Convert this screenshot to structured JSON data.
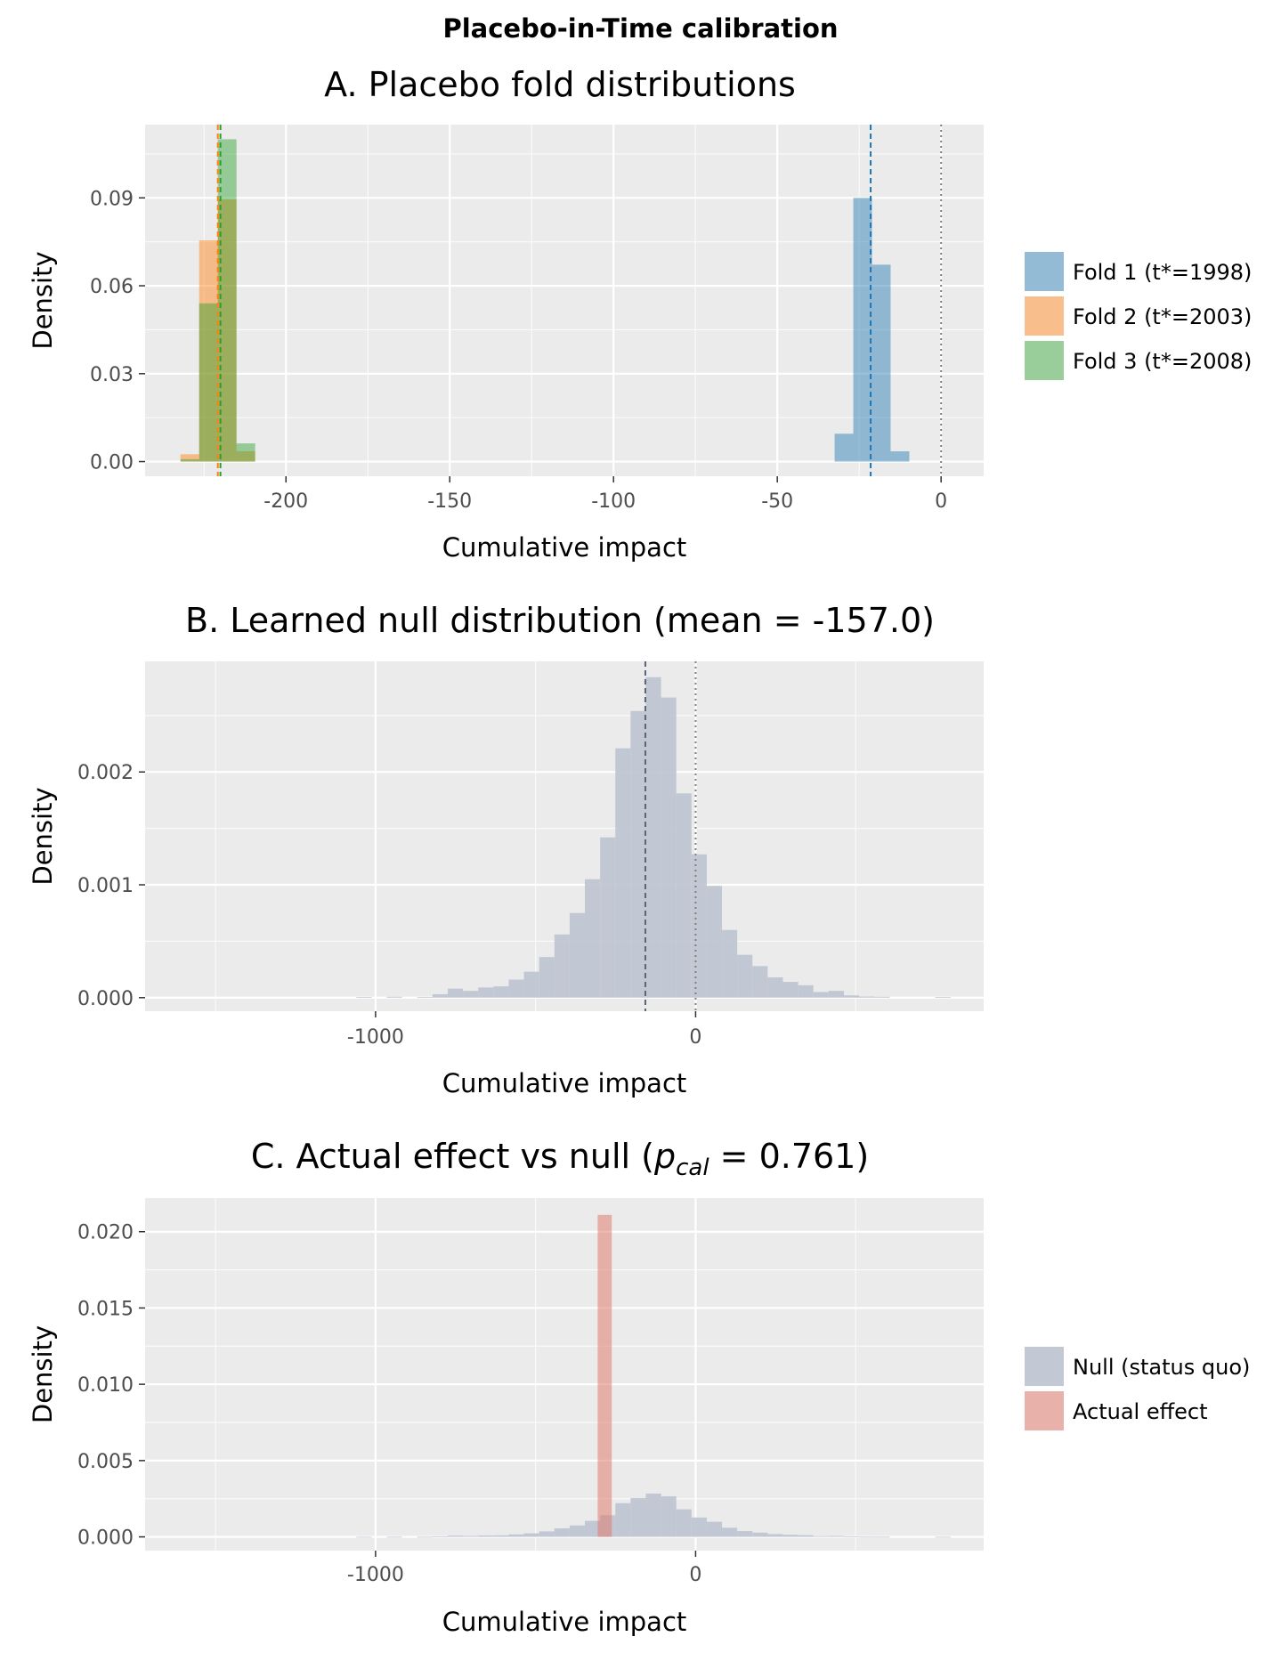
{
  "figure_title": "Placebo-in-Time calibration",
  "chart_data": [
    {
      "type": "histogram",
      "title": "A. Placebo fold distributions",
      "xlabel": "Cumulative impact",
      "ylabel": "Density",
      "xlim": [
        -243,
        13
      ],
      "ylim": [
        -0.005,
        0.115
      ],
      "xticks": [
        -200,
        -150,
        -100,
        -50,
        0
      ],
      "xtick_labels": [
        "-200",
        "-150",
        "-100",
        "-50",
        "0"
      ],
      "yticks": [
        0.0,
        0.03,
        0.06,
        0.09
      ],
      "ytick_labels": [
        "0.00",
        "0.03",
        "0.06",
        "0.09"
      ],
      "grid": true,
      "legend_position": "right",
      "reference_line": {
        "x": 0,
        "style": "dotted",
        "color": "#7f7f7f"
      },
      "series": [
        {
          "name": "Fold 1 (t*=1998)",
          "color": "#1f77b4",
          "mean_line": -21.5,
          "bins": [
            [
              -32.5,
              -26.8,
              0.0095
            ],
            [
              -26.8,
              -21.1,
              0.09
            ],
            [
              -21.1,
              -15.4,
              0.0672
            ],
            [
              -15.4,
              -9.7,
              0.0035
            ]
          ]
        },
        {
          "name": "Fold 2 (t*=2003)",
          "color": "#ff7f0e",
          "mean_line": -220.8,
          "bins": [
            [
              -232.2,
              -226.5,
              0.0025
            ],
            [
              -226.5,
              -220.8,
              0.0755
            ],
            [
              -220.8,
              -215.1,
              0.0895
            ],
            [
              -215.1,
              -209.4,
              0.0035
            ]
          ]
        },
        {
          "name": "Fold 3 (t*=2008)",
          "color": "#2ca02c",
          "mean_line": -220.0,
          "bins": [
            [
              -232.2,
              -226.5,
              0.0008
            ],
            [
              -226.5,
              -220.8,
              0.054
            ],
            [
              -220.8,
              -215.1,
              0.11
            ],
            [
              -215.1,
              -209.4,
              0.0062
            ]
          ]
        }
      ]
    },
    {
      "type": "histogram",
      "title": "B. Learned null distribution (mean = -157.0)",
      "xlabel": "Cumulative impact",
      "ylabel": "Density",
      "xlim": [
        -1720,
        900
      ],
      "ylim": [
        -0.00012,
        0.00298
      ],
      "xticks": [
        -1000,
        0
      ],
      "xtick_labels": [
        "-1000",
        "0"
      ],
      "yticks": [
        0.0,
        0.001,
        0.002
      ],
      "ytick_labels": [
        "0.000",
        "0.001",
        "0.002"
      ],
      "grid": true,
      "reference_line": {
        "x": 0,
        "style": "dotted",
        "color": "#7f7f7f"
      },
      "mean_line": -157.0,
      "series": [
        {
          "name": "Null",
          "color": "#c0c6d2",
          "bin_start": -1060,
          "bin_width": 47.6,
          "values": [
            5e-06,
            0,
            8e-06,
            0,
            6e-06,
            3e-05,
            8e-05,
            6e-05,
            9e-05,
            0.0001,
            0.00016,
            0.00023,
            0.00036,
            0.00056,
            0.00075,
            0.00105,
            0.00142,
            0.00221,
            0.00254,
            0.00284,
            0.00266,
            0.00181,
            0.00127,
            0.00099,
            0.0006,
            0.00038,
            0.00028,
            0.00018,
            0.00014,
            0.00011,
            5e-05,
            6e-05,
            2e-05,
            1e-05,
            8e-06,
            0,
            0,
            0,
            5e-06
          ]
        }
      ]
    },
    {
      "type": "histogram",
      "title_prefix": "C. Actual effect vs null (",
      "title_p": "p",
      "title_sub": "cal",
      "title_suffix": " = 0.761)",
      "xlabel": "Cumulative impact",
      "ylabel": "Density",
      "xlim": [
        -1720,
        900
      ],
      "ylim": [
        -0.0009,
        0.0222
      ],
      "xticks": [
        -1000,
        0
      ],
      "xtick_labels": [
        "-1000",
        "0"
      ],
      "yticks": [
        0.0,
        0.005,
        0.01,
        0.015,
        0.02
      ],
      "ytick_labels": [
        "0.000",
        "0.005",
        "0.010",
        "0.015",
        "0.020"
      ],
      "grid": true,
      "legend_position": "right",
      "series": [
        {
          "name": "Null (status quo)",
          "color": "#c0c6d2",
          "bin_start": -1060,
          "bin_width": 47.6,
          "values": [
            5e-06,
            0,
            8e-06,
            0,
            6e-06,
            3e-05,
            8e-05,
            6e-05,
            9e-05,
            0.0001,
            0.00016,
            0.00023,
            0.00036,
            0.00056,
            0.00075,
            0.00105,
            0.00142,
            0.00221,
            0.00254,
            0.00284,
            0.00266,
            0.00181,
            0.00127,
            0.00099,
            0.0006,
            0.00038,
            0.00028,
            0.00018,
            0.00014,
            0.00011,
            5e-05,
            6e-05,
            2e-05,
            1e-05,
            8e-06,
            0,
            0,
            0,
            5e-06
          ]
        },
        {
          "name": "Actual effect",
          "color": "#e07b6f",
          "bins": [
            [
              -306,
              -262,
              0.0211
            ]
          ]
        }
      ]
    }
  ]
}
